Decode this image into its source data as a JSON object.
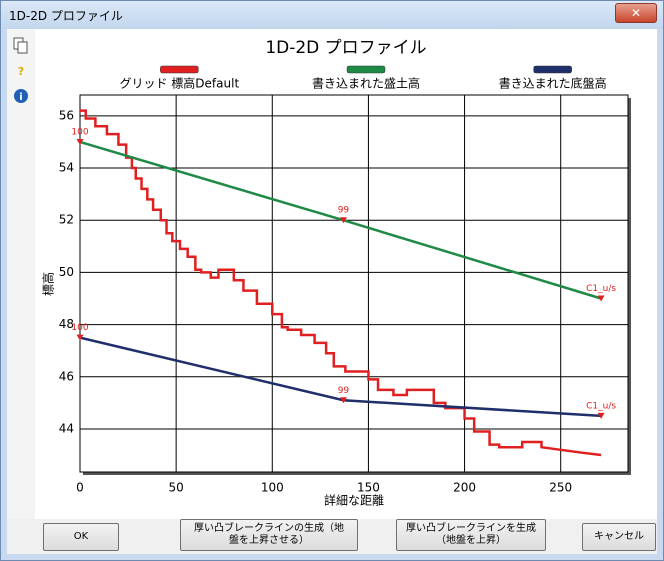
{
  "window": {
    "title": "1D-2D プロファイル"
  },
  "chart_data": {
    "type": "line",
    "title": "1D-2D プロファイル",
    "x_label": "詳細な距離",
    "y_label": "標高",
    "xlim": [
      0,
      285
    ],
    "ylim": [
      42.35,
      56.8
    ],
    "xticks": [
      0,
      50,
      100,
      150,
      200,
      250
    ],
    "yticks": [
      44,
      46,
      48,
      50,
      52,
      54,
      56
    ],
    "grid": true,
    "point_label_color": "#e02020",
    "series": [
      {
        "name": "グリッド 標高Default",
        "color": "#e02020",
        "x": [
          0,
          3,
          3,
          8,
          8,
          14,
          14,
          20,
          20,
          24,
          24,
          27,
          27,
          29,
          29,
          32,
          32,
          35,
          35,
          38,
          38,
          42,
          42,
          45,
          45,
          48,
          48,
          52,
          52,
          56,
          56,
          60,
          60,
          63,
          63,
          68,
          68,
          72,
          72,
          80,
          80,
          85,
          85,
          92,
          92,
          100,
          100,
          105,
          105,
          108,
          108,
          115,
          115,
          122,
          122,
          128,
          128,
          132,
          132,
          138,
          138,
          150,
          150,
          155,
          155,
          163,
          163,
          170,
          170,
          184,
          184,
          190,
          190,
          200,
          200,
          205,
          205,
          213,
          213,
          218,
          218,
          230,
          230,
          240,
          240,
          250,
          260,
          271
        ],
        "values": [
          56.2,
          56.2,
          55.9,
          55.9,
          55.6,
          55.6,
          55.3,
          55.3,
          54.9,
          54.9,
          54.4,
          54.4,
          54.0,
          54.0,
          53.6,
          53.6,
          53.2,
          53.2,
          52.8,
          52.8,
          52.4,
          52.4,
          52.0,
          52.0,
          51.5,
          51.5,
          51.2,
          51.2,
          50.9,
          50.9,
          50.6,
          50.6,
          50.1,
          50.1,
          50.0,
          50.0,
          49.8,
          49.8,
          50.1,
          50.1,
          49.7,
          49.7,
          49.3,
          49.3,
          48.8,
          48.8,
          48.4,
          48.4,
          47.9,
          47.9,
          47.8,
          47.8,
          47.6,
          47.6,
          47.3,
          47.3,
          46.9,
          46.9,
          46.4,
          46.4,
          46.2,
          46.2,
          45.9,
          45.9,
          45.5,
          45.5,
          45.3,
          45.3,
          45.5,
          45.5,
          45.0,
          45.0,
          44.8,
          44.8,
          44.4,
          44.4,
          43.9,
          43.9,
          43.4,
          43.4,
          43.3,
          43.3,
          43.5,
          43.5,
          43.3,
          43.2,
          43.1,
          43.0
        ]
      },
      {
        "name": "書き込まれた盛土高",
        "color": "#1e8a45",
        "x": [
          0,
          137,
          271
        ],
        "values": [
          55,
          52,
          49
        ],
        "point_labels": [
          "100",
          "99",
          "C1_u/s"
        ]
      },
      {
        "name": "書き込まれた底盤高",
        "color": "#1f2f6b",
        "x": [
          0,
          137,
          271
        ],
        "values": [
          47.5,
          45.1,
          44.5
        ],
        "point_labels": [
          "100",
          "99",
          "C1_u/s"
        ]
      }
    ]
  },
  "buttons": [
    "OK",
    "厚い凸ブレークラインの生成（地\n盤を上昇させる）",
    "厚い凸ブレークラインを生成\n（地盤を上昇）",
    "キャンセル"
  ]
}
